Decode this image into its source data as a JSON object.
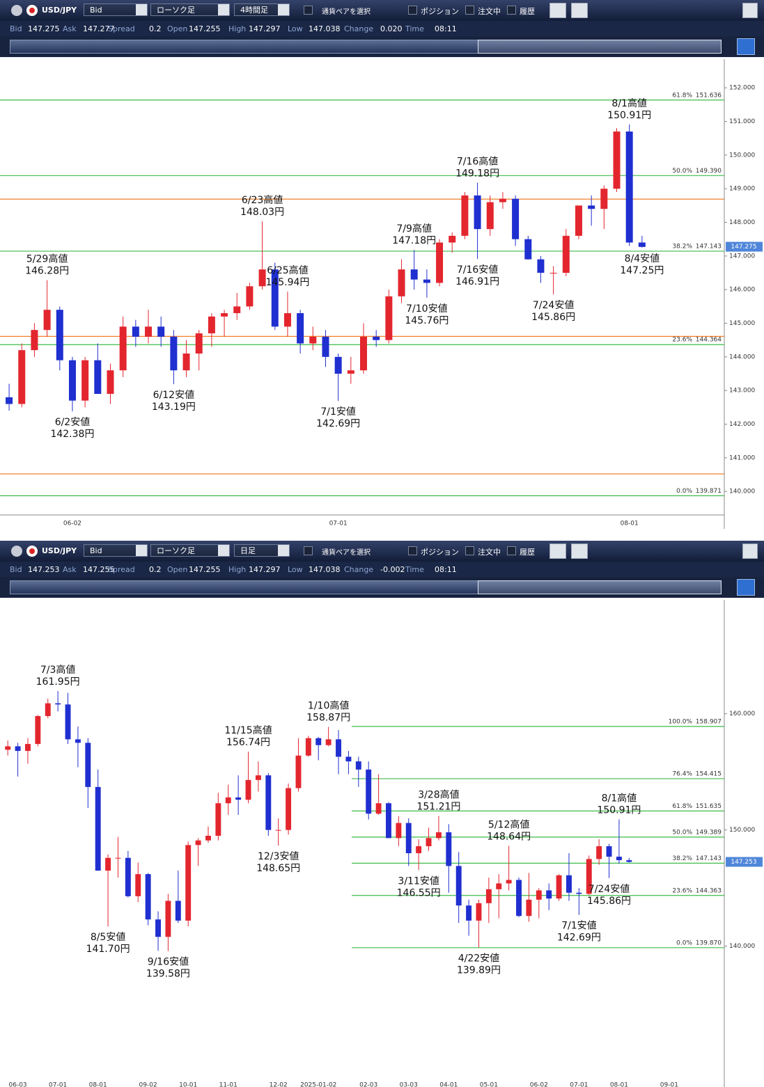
{
  "panels": [
    {
      "toolbar": {
        "pair": "USD/JPY",
        "price_type": "Bid",
        "chart_type": "ローソク足",
        "timeframe": "4時間足",
        "select_pair": "通貨ペアを選択",
        "checks": [
          "ポジション",
          "注文中",
          "履歴"
        ]
      },
      "quote": [
        {
          "label": "Bid",
          "value": "147.275"
        },
        {
          "label": "Ask",
          "value": "147.277"
        },
        {
          "label": "Spread",
          "value": "0.2"
        },
        {
          "label": "Open",
          "value": "147.255"
        },
        {
          "label": "High",
          "value": "147.297"
        },
        {
          "label": "Low",
          "value": "147.038"
        },
        {
          "label": "Change",
          "value": "0.020"
        },
        {
          "label": "Time",
          "value": "08:11"
        }
      ]
    },
    {
      "toolbar": {
        "pair": "USD/JPY",
        "price_type": "Bid",
        "chart_type": "ローソク足",
        "timeframe": "日足",
        "select_pair": "通貨ペアを選択",
        "checks": [
          "ポジション",
          "注文中",
          "履歴"
        ]
      },
      "quote": [
        {
          "label": "Bid",
          "value": "147.253"
        },
        {
          "label": "Ask",
          "value": "147.255"
        },
        {
          "label": "Spread",
          "value": "0.2"
        },
        {
          "label": "Open",
          "value": "147.255"
        },
        {
          "label": "High",
          "value": "147.297"
        },
        {
          "label": "Low",
          "value": "147.038"
        },
        {
          "label": "Change",
          "value": "-0.002"
        },
        {
          "label": "Time",
          "value": "08:11"
        }
      ]
    }
  ],
  "chart_data": [
    {
      "type": "candlestick",
      "categories": [
        null,
        null,
        null,
        null,
        null,
        "06-02",
        null,
        null,
        null,
        null,
        null,
        null,
        null,
        null,
        null,
        null,
        null,
        null,
        null,
        null,
        null,
        null,
        null,
        null,
        null,
        null,
        "07-01",
        null,
        null,
        null,
        null,
        null,
        null,
        null,
        null,
        null,
        null,
        null,
        null,
        null,
        null,
        null,
        null,
        null,
        null,
        null,
        null,
        null,
        null,
        "08-01",
        null,
        null,
        null,
        null,
        null,
        null,
        null
      ],
      "open": [
        142.8,
        142.6,
        144.2,
        144.8,
        145.4,
        143.9,
        142.7,
        143.9,
        142.9,
        143.6,
        144.9,
        144.6,
        144.9,
        144.6,
        143.6,
        144.1,
        144.7,
        145.2,
        145.3,
        145.5,
        146.1,
        146.6,
        144.9,
        145.3,
        144.4,
        144.6,
        144.0,
        143.5,
        143.6,
        144.6,
        144.5,
        145.8,
        146.6,
        146.3,
        146.2,
        147.4,
        147.6,
        148.8,
        147.8,
        148.6,
        148.7,
        147.5,
        146.9,
        146.5,
        146.5,
        147.6,
        148.5,
        148.4,
        149.0,
        150.7,
        147.4,
        null,
        null,
        null,
        null,
        null,
        null
      ],
      "high": [
        143.2,
        144.4,
        145.0,
        146.28,
        145.5,
        144.0,
        144.0,
        144.4,
        143.8,
        145.2,
        145.1,
        145.4,
        145.2,
        144.8,
        144.5,
        144.8,
        145.3,
        145.4,
        145.9,
        146.2,
        148.03,
        146.8,
        145.94,
        145.4,
        144.9,
        144.8,
        144.1,
        144.0,
        145.0,
        144.8,
        146.0,
        146.9,
        147.18,
        146.6,
        147.5,
        147.7,
        148.9,
        149.18,
        148.8,
        148.9,
        148.8,
        147.6,
        147.0,
        146.7,
        147.8,
        148.5,
        148.8,
        149.1,
        150.8,
        150.91,
        147.6,
        null,
        null,
        null,
        null,
        null,
        null
      ],
      "low": [
        142.4,
        142.5,
        144.0,
        144.6,
        143.6,
        142.38,
        142.5,
        142.9,
        142.6,
        143.4,
        144.3,
        144.4,
        144.3,
        143.19,
        143.4,
        143.6,
        144.3,
        144.6,
        145.1,
        145.4,
        146.0,
        144.8,
        144.6,
        144.1,
        144.2,
        143.7,
        142.69,
        143.2,
        143.5,
        144.3,
        144.4,
        145.6,
        146.0,
        145.76,
        146.1,
        147.1,
        147.5,
        146.91,
        147.6,
        148.4,
        147.3,
        146.9,
        146.2,
        145.86,
        146.4,
        147.5,
        147.9,
        147.8,
        148.9,
        147.3,
        147.25,
        null,
        null,
        null,
        null,
        null,
        null
      ],
      "close": [
        142.6,
        144.2,
        144.8,
        145.4,
        143.9,
        142.7,
        143.9,
        142.9,
        143.6,
        144.9,
        144.6,
        144.9,
        144.6,
        143.6,
        144.1,
        144.7,
        145.2,
        145.3,
        145.5,
        146.1,
        146.6,
        144.9,
        145.3,
        144.4,
        144.6,
        144.0,
        143.5,
        143.6,
        144.6,
        144.5,
        145.8,
        146.6,
        146.3,
        146.2,
        147.4,
        147.6,
        148.8,
        147.8,
        148.6,
        148.7,
        147.5,
        146.9,
        146.5,
        146.5,
        147.6,
        148.5,
        148.4,
        149.0,
        150.7,
        147.4,
        147.27,
        null,
        null,
        null,
        null,
        null,
        null
      ],
      "high_labels": [
        null,
        null,
        null,
        [
          "5/29高値",
          "146.28円"
        ],
        null,
        null,
        null,
        null,
        null,
        null,
        null,
        null,
        null,
        null,
        null,
        null,
        null,
        null,
        null,
        null,
        [
          "6/23高値",
          "148.03円"
        ],
        null,
        [
          "6/25高値",
          "145.94円"
        ],
        null,
        null,
        null,
        null,
        null,
        null,
        null,
        null,
        null,
        [
          "7/9高値",
          "147.18円"
        ],
        null,
        null,
        null,
        null,
        [
          "7/16高値",
          "149.18円"
        ],
        null,
        null,
        null,
        null,
        null,
        null,
        null,
        null,
        null,
        null,
        null,
        [
          "8/1高値",
          "150.91円"
        ],
        null,
        null,
        null,
        null,
        null,
        null,
        null
      ],
      "low_labels": [
        null,
        null,
        null,
        null,
        null,
        [
          "6/2安値",
          "142.38円"
        ],
        null,
        null,
        null,
        null,
        null,
        null,
        null,
        [
          "6/12安値",
          "143.19円"
        ],
        null,
        null,
        null,
        null,
        null,
        null,
        null,
        null,
        null,
        null,
        null,
        null,
        [
          "7/1安値",
          "142.69円"
        ],
        null,
        null,
        null,
        null,
        null,
        null,
        [
          "7/10安値",
          "145.76円"
        ],
        null,
        null,
        null,
        [
          "7/16安値",
          "146.91円"
        ],
        null,
        null,
        null,
        null,
        null,
        [
          "7/24安値",
          "145.86円"
        ],
        null,
        null,
        null,
        null,
        null,
        null,
        [
          "8/4安値",
          "147.25円"
        ],
        null,
        null,
        null,
        null,
        null,
        null
      ],
      "ylim": [
        139.3,
        152.79
      ],
      "yticks": [
        {
          "value": 140,
          "label": "140.000"
        },
        {
          "value": 141,
          "label": "141.000"
        },
        {
          "value": 142,
          "label": "142.000"
        },
        {
          "value": 143,
          "label": "143.000"
        },
        {
          "value": 144,
          "label": "144.000"
        },
        {
          "value": 145,
          "label": "145.000"
        },
        {
          "value": 146,
          "label": "146.000"
        },
        {
          "value": 147,
          "label": "147.000"
        },
        {
          "value": 148,
          "label": "148.000"
        },
        {
          "value": 149,
          "label": "149.000"
        },
        {
          "value": 150,
          "label": "150.000"
        },
        {
          "value": 151,
          "label": "151.000"
        },
        {
          "value": 152,
          "label": "152.000"
        }
      ],
      "fib": [
        {
          "label": "61.8%",
          "value": 151.636
        },
        {
          "label": "50.0%",
          "value": 149.39,
          "value_label": "149.390"
        },
        {
          "label": "38.2%",
          "value": 147.143
        },
        {
          "label": "23.6%",
          "value": 144.364
        },
        {
          "label": "0.0%",
          "value": 139.871
        }
      ],
      "hlines": [
        {
          "value": 148.69,
          "color": "#f07f2a"
        },
        {
          "value": 144.61,
          "color": "#f07f2a"
        },
        {
          "value": 140.52,
          "color": "#f07f2a"
        }
      ],
      "last_price": 147.275,
      "colors": {
        "up": "#e3262e",
        "down": "#1f2fd0",
        "fib": "#3dbb48",
        "last": "#4f86d9"
      }
    },
    {
      "type": "candlestick",
      "categories": [
        null,
        "06-03",
        null,
        null,
        null,
        "07-01",
        null,
        null,
        null,
        "08-01",
        null,
        null,
        null,
        null,
        "09-02",
        null,
        null,
        null,
        "10-01",
        null,
        null,
        null,
        "11-01",
        null,
        null,
        null,
        null,
        "12-02",
        null,
        null,
        null,
        "2025-01-02",
        null,
        null,
        null,
        null,
        "02-03",
        null,
        null,
        null,
        "03-03",
        null,
        null,
        null,
        "04-01",
        null,
        null,
        null,
        "05-01",
        null,
        null,
        null,
        null,
        "06-02",
        null,
        null,
        null,
        "07-01",
        null,
        null,
        null,
        "08-01",
        null,
        null,
        null,
        null,
        "09-01",
        null,
        null,
        null,
        null,
        null
      ],
      "open": [
        156.9,
        157.2,
        156.8,
        157.4,
        159.8,
        160.9,
        160.8,
        157.8,
        157.5,
        153.7,
        146.5,
        147.6,
        147.6,
        144.3,
        146.2,
        142.3,
        140.8,
        143.9,
        142.2,
        148.7,
        149.1,
        149.5,
        152.3,
        152.8,
        152.6,
        154.3,
        154.7,
        150.0,
        150.0,
        153.6,
        156.4,
        157.9,
        157.3,
        157.8,
        156.3,
        155.9,
        155.2,
        151.4,
        152.3,
        149.3,
        150.6,
        148.0,
        148.6,
        149.3,
        149.8,
        146.9,
        143.5,
        142.2,
        143.7,
        144.9,
        145.4,
        145.7,
        142.6,
        144.0,
        144.8,
        144.1,
        146.1,
        144.6,
        144.5,
        147.5,
        148.6,
        147.7,
        147.4,
        null,
        null,
        null,
        null,
        null,
        null,
        null,
        null,
        null
      ],
      "high": [
        157.7,
        157.5,
        157.9,
        159.9,
        161.3,
        161.95,
        161.8,
        158.9,
        157.9,
        155.2,
        147.9,
        149.4,
        148.2,
        147.2,
        146.3,
        143.0,
        144.5,
        146.5,
        149.0,
        149.3,
        150.3,
        153.2,
        153.9,
        154.7,
        156.74,
        155.9,
        154.9,
        151.0,
        154.0,
        157.9,
        158.1,
        158.0,
        158.87,
        158.6,
        156.8,
        156.3,
        155.9,
        154.8,
        152.4,
        151.2,
        151.0,
        149.2,
        150.2,
        151.21,
        150.5,
        148.1,
        144.0,
        144.0,
        145.9,
        146.2,
        148.64,
        145.9,
        146.3,
        145.0,
        145.4,
        146.2,
        148.0,
        145.0,
        147.8,
        149.2,
        148.8,
        150.91,
        147.6,
        null,
        null,
        null,
        null,
        null,
        null,
        null,
        null,
        null
      ],
      "low": [
        156.4,
        154.6,
        155.7,
        157.2,
        159.6,
        160.2,
        157.4,
        155.4,
        151.9,
        146.5,
        141.7,
        145.9,
        144.2,
        143.8,
        141.8,
        139.6,
        139.58,
        142.0,
        141.7,
        146.9,
        148.9,
        149.1,
        151.3,
        151.3,
        152.3,
        153.3,
        149.5,
        148.65,
        149.6,
        153.3,
        156.3,
        156.0,
        157.2,
        154.8,
        154.8,
        153.7,
        150.9,
        151.3,
        149.3,
        148.6,
        146.9,
        146.55,
        148.2,
        149.1,
        144.6,
        142.0,
        140.9,
        139.89,
        142.0,
        142.4,
        144.8,
        142.5,
        142.1,
        142.4,
        143.1,
        143.9,
        143.9,
        142.69,
        144.4,
        147.0,
        145.86,
        147.1,
        147.2,
        null,
        null,
        null,
        null,
        null,
        null,
        null,
        null,
        null
      ],
      "close": [
        157.2,
        156.8,
        157.4,
        159.8,
        160.9,
        160.8,
        157.8,
        157.5,
        153.7,
        146.5,
        147.6,
        147.6,
        144.3,
        146.2,
        142.3,
        140.8,
        143.9,
        142.2,
        148.7,
        149.1,
        149.5,
        152.3,
        152.8,
        152.6,
        154.3,
        154.7,
        150.0,
        150.0,
        153.6,
        156.4,
        157.9,
        157.3,
        157.8,
        156.3,
        155.9,
        155.2,
        151.4,
        152.3,
        149.3,
        150.6,
        148.0,
        148.6,
        149.3,
        149.8,
        146.9,
        143.5,
        142.2,
        143.7,
        144.9,
        145.4,
        145.7,
        142.6,
        144.0,
        144.8,
        144.1,
        146.1,
        144.6,
        144.5,
        147.5,
        148.6,
        147.7,
        147.4,
        147.25,
        null,
        null,
        null,
        null,
        null,
        null,
        null,
        null,
        null
      ],
      "high_labels": [
        null,
        null,
        null,
        null,
        null,
        [
          "7/3高値",
          "161.95円"
        ],
        null,
        null,
        null,
        null,
        null,
        null,
        null,
        null,
        null,
        null,
        null,
        null,
        null,
        null,
        null,
        null,
        null,
        null,
        [
          "11/15高値",
          "156.74円"
        ],
        null,
        null,
        null,
        null,
        null,
        null,
        null,
        [
          "1/10高値",
          "158.87円"
        ],
        null,
        null,
        null,
        null,
        null,
        null,
        null,
        null,
        null,
        null,
        [
          "3/28高値",
          "151.21円"
        ],
        null,
        null,
        null,
        null,
        null,
        null,
        [
          "5/12高値",
          "148.64円"
        ],
        null,
        null,
        null,
        null,
        null,
        null,
        null,
        null,
        null,
        null,
        [
          "8/1高値",
          "150.91円"
        ],
        null,
        null,
        null,
        null,
        null,
        null,
        null,
        null,
        null,
        null
      ],
      "low_labels": [
        null,
        null,
        null,
        null,
        null,
        null,
        null,
        null,
        null,
        null,
        [
          "8/5安値",
          "141.70円"
        ],
        null,
        null,
        null,
        null,
        null,
        [
          "9/16安値",
          "139.58円"
        ],
        null,
        null,
        null,
        null,
        null,
        null,
        null,
        null,
        null,
        null,
        [
          "12/3安値",
          "148.65円"
        ],
        null,
        null,
        null,
        null,
        null,
        null,
        null,
        null,
        null,
        null,
        null,
        null,
        null,
        [
          "3/11安値",
          "146.55円"
        ],
        null,
        null,
        null,
        null,
        null,
        [
          "4/22安値",
          "139.89円"
        ],
        null,
        null,
        null,
        null,
        null,
        null,
        null,
        null,
        null,
        [
          "7/1安値",
          "142.69円"
        ],
        null,
        null,
        [
          "7/24安値",
          "145.86円"
        ],
        null,
        null,
        null,
        null,
        null,
        null,
        null,
        null,
        null,
        null,
        null
      ],
      "ylim": [
        128.6,
        169.8
      ],
      "yticks": [
        {
          "value": 140,
          "label": "140.000"
        },
        {
          "value": 150,
          "label": "150.000"
        },
        {
          "value": 160,
          "label": "160.000"
        }
      ],
      "fib": [
        {
          "label": "100.0%",
          "value": 158.907
        },
        {
          "label": "76.4%",
          "value": 154.415
        },
        {
          "label": "61.8%",
          "value": 151.635
        },
        {
          "label": "50.0%",
          "value": 149.389
        },
        {
          "label": "38.2%",
          "value": 147.143
        },
        {
          "label": "23.6%",
          "value": 144.363
        },
        {
          "label": "0.0%",
          "value": 139.87,
          "value_label": "139.870"
        }
      ],
      "last_price": 147.253,
      "colors": {
        "up": "#e3262e",
        "down": "#1f2fd0",
        "fib": "#3dbb48",
        "last": "#4f86d9"
      }
    }
  ]
}
